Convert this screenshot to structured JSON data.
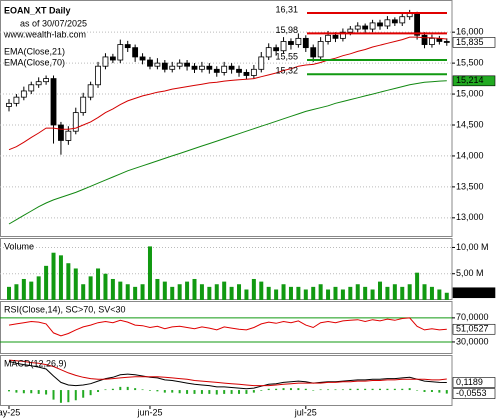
{
  "chart_data": [
    {
      "type": "candlestick",
      "title": "EOAN_XT Daily",
      "subtitle": "as of 30/07/2025",
      "source": "www.wealth-lab.com",
      "open": [
        14.8,
        14.85,
        14.95,
        15.05,
        15.15,
        15.2,
        15.25,
        14.5,
        14.25,
        14.4,
        14.7,
        14.95,
        15.15,
        15.45,
        15.6,
        15.55,
        15.8,
        15.75,
        15.6,
        15.55,
        15.45,
        15.5,
        15.4,
        15.45,
        15.5,
        15.45,
        15.4,
        15.45,
        15.4,
        15.35,
        15.45,
        15.4,
        15.35,
        15.3,
        15.4,
        15.6,
        15.75,
        15.7,
        15.85,
        15.8,
        15.9,
        15.75,
        15.6,
        15.85,
        15.95,
        15.9,
        16.0,
        16.05,
        16.1,
        16.05,
        16.15,
        16.1,
        16.2,
        16.15,
        16.25,
        16.31,
        15.95,
        15.8,
        15.9,
        15.85
      ],
      "high": [
        14.92,
        15.0,
        15.12,
        15.2,
        15.27,
        15.3,
        15.3,
        14.55,
        14.48,
        14.78,
        15.02,
        15.2,
        15.52,
        15.66,
        15.65,
        15.88,
        15.86,
        15.8,
        15.66,
        15.6,
        15.58,
        15.55,
        15.52,
        15.56,
        15.55,
        15.5,
        15.52,
        15.5,
        15.45,
        15.52,
        15.5,
        15.46,
        15.4,
        15.47,
        15.68,
        15.82,
        15.8,
        15.92,
        15.9,
        15.98,
        15.95,
        15.8,
        15.92,
        16.02,
        16.0,
        16.06,
        16.1,
        16.16,
        16.14,
        16.2,
        16.2,
        16.26,
        16.24,
        16.3,
        16.36,
        16.33,
        16.0,
        15.96,
        15.94,
        15.9
      ],
      "low": [
        14.72,
        14.8,
        14.9,
        15.0,
        15.1,
        15.15,
        14.2,
        14.02,
        14.18,
        14.35,
        14.65,
        14.9,
        15.1,
        15.4,
        15.5,
        15.5,
        15.68,
        15.52,
        15.48,
        15.4,
        15.4,
        15.35,
        15.35,
        15.4,
        15.38,
        15.34,
        15.35,
        15.33,
        15.28,
        15.3,
        15.33,
        15.28,
        15.24,
        15.25,
        15.35,
        15.55,
        15.62,
        15.65,
        15.72,
        15.75,
        15.68,
        15.52,
        15.55,
        15.8,
        15.84,
        15.85,
        15.95,
        16.0,
        15.98,
        16.0,
        16.04,
        16.05,
        16.1,
        16.1,
        16.2,
        15.88,
        15.74,
        15.75,
        15.8,
        15.78
      ],
      "close": [
        14.85,
        14.95,
        15.05,
        15.15,
        15.2,
        15.25,
        14.5,
        14.25,
        14.4,
        14.7,
        14.95,
        15.15,
        15.45,
        15.6,
        15.55,
        15.8,
        15.75,
        15.6,
        15.55,
        15.45,
        15.5,
        15.4,
        15.45,
        15.5,
        15.45,
        15.4,
        15.45,
        15.4,
        15.35,
        15.45,
        15.4,
        15.35,
        15.3,
        15.4,
        15.6,
        15.75,
        15.7,
        15.85,
        15.8,
        15.9,
        15.75,
        15.6,
        15.85,
        15.95,
        15.9,
        16.0,
        16.05,
        16.1,
        16.05,
        16.15,
        16.1,
        16.2,
        16.15,
        16.25,
        16.31,
        15.95,
        15.8,
        15.9,
        15.85,
        15.835
      ],
      "series": [
        {
          "name": "EMA(Close,21)",
          "color": "#d40000",
          "values": [
            14.1,
            14.15,
            14.22,
            14.3,
            14.37,
            14.45,
            14.45,
            14.43,
            14.43,
            14.45,
            14.5,
            14.55,
            14.62,
            14.7,
            14.76,
            14.83,
            14.89,
            14.93,
            14.97,
            15.0,
            15.03,
            15.05,
            15.08,
            15.1,
            15.12,
            15.14,
            15.16,
            15.18,
            15.19,
            15.21,
            15.22,
            15.23,
            15.24,
            15.25,
            15.28,
            15.31,
            15.34,
            15.38,
            15.41,
            15.45,
            15.47,
            15.48,
            15.51,
            15.55,
            15.58,
            15.62,
            15.65,
            15.69,
            15.72,
            15.76,
            15.79,
            15.82,
            15.85,
            15.88,
            15.92,
            15.92,
            15.91,
            15.91,
            15.9,
            15.89
          ]
        },
        {
          "name": "EMA(Close,70)",
          "color": "#118811",
          "values": [
            12.9,
            12.97,
            13.04,
            13.11,
            13.18,
            13.24,
            13.29,
            13.33,
            13.37,
            13.41,
            13.46,
            13.51,
            13.56,
            13.61,
            13.66,
            13.71,
            13.76,
            13.8,
            13.84,
            13.88,
            13.92,
            13.96,
            14.0,
            14.04,
            14.08,
            14.12,
            14.16,
            14.2,
            14.24,
            14.28,
            14.32,
            14.36,
            14.4,
            14.44,
            14.48,
            14.52,
            14.56,
            14.6,
            14.64,
            14.68,
            14.72,
            14.75,
            14.78,
            14.81,
            14.85,
            14.88,
            14.91,
            14.94,
            14.97,
            15.0,
            15.03,
            15.06,
            15.09,
            15.12,
            15.15,
            15.17,
            15.19,
            15.2,
            15.21,
            15.214
          ]
        }
      ],
      "levels": [
        {
          "value": 16.31,
          "label": "16,31",
          "color": "#e00000"
        },
        {
          "value": 15.98,
          "label": "15,98",
          "color": "#e00000"
        },
        {
          "value": 15.55,
          "label": "15,55",
          "color": "#119911"
        },
        {
          "value": 15.32,
          "label": "15,32",
          "color": "#119911"
        }
      ],
      "last_labels": [
        {
          "value": 15.835,
          "label": "15,835",
          "color": "#ffffff"
        },
        {
          "value": 15.214,
          "label": "15,214",
          "color": "#22aa22"
        }
      ],
      "ylim": [
        12.69,
        16.52
      ],
      "yticks": [
        {
          "value": 13,
          "label": "13,000"
        },
        {
          "value": 13.5,
          "label": "13,500"
        },
        {
          "value": 14,
          "label": "14,000"
        },
        {
          "value": 14.5,
          "label": "14,500"
        },
        {
          "value": 15,
          "label": "15,000"
        },
        {
          "value": 15.5,
          "label": "15,500"
        },
        {
          "value": 16,
          "label": "16,000"
        }
      ],
      "grid": true
    },
    {
      "type": "bar",
      "title": "Volume",
      "color": "#119911",
      "values": [
        2.5,
        3,
        4,
        3.5,
        4.5,
        6.5,
        9,
        8.5,
        7,
        6,
        3,
        4.5,
        6,
        5,
        4,
        3.5,
        3,
        2.5,
        3,
        10.2,
        4,
        3.5,
        2.5,
        3,
        3.5,
        4,
        3,
        2.5,
        3,
        3.5,
        2.5,
        3,
        2,
        4,
        3.5,
        2.5,
        2,
        3,
        2.5,
        2.5,
        2,
        2.5,
        3,
        2,
        2.5,
        2,
        2.5,
        3,
        2.5,
        2,
        3.5,
        2.5,
        3,
        2.5,
        3,
        5.2,
        3,
        2.5,
        2,
        1.38
      ],
      "last_labels": [
        {
          "value": 1.38,
          "label": "1,38 M",
          "color": "#000000"
        }
      ],
      "ylim": [
        0,
        11.8
      ],
      "yticks": [
        {
          "value": 5,
          "label": "5,00 M"
        },
        {
          "value": 10,
          "label": "10,00 M"
        }
      ],
      "grid": true
    },
    {
      "type": "line",
      "title": "RSI(Close,14), SC>70, SV<30",
      "band_color": "#119911",
      "series": [
        {
          "name": "RSI(Close,14)",
          "color": "#e00000",
          "values": [
            58,
            60,
            62,
            64,
            63,
            60,
            45,
            40,
            44,
            50,
            55,
            58,
            62,
            64,
            62,
            66,
            63,
            58,
            57,
            54,
            56,
            52,
            55,
            56,
            54,
            52,
            55,
            53,
            50,
            55,
            53,
            51,
            50,
            54,
            60,
            63,
            61,
            64,
            62,
            65,
            58,
            54,
            62,
            64,
            62,
            65,
            66,
            67,
            64,
            67,
            65,
            68,
            66,
            69,
            70,
            56,
            50,
            52,
            50,
            51.0527
          ]
        }
      ],
      "last_labels": [
        {
          "value": 51.0527,
          "label": "51,0527",
          "color": "#ffffff"
        }
      ],
      "ylim": [
        10,
        98
      ],
      "yticks": [
        {
          "value": 30,
          "label": "30,0000"
        },
        {
          "value": 70,
          "label": "70,0000"
        }
      ],
      "grid": false
    },
    {
      "type": "macd",
      "title": "MACD(12,26,9)",
      "categories": [
        "ay-25",
        null,
        null,
        null,
        null,
        null,
        null,
        null,
        null,
        null,
        null,
        null,
        null,
        null,
        null,
        null,
        null,
        null,
        null,
        "jun-25",
        null,
        null,
        null,
        null,
        null,
        null,
        null,
        null,
        null,
        null,
        null,
        null,
        null,
        null,
        null,
        null,
        null,
        null,
        null,
        null,
        "jul-25",
        null,
        null,
        null,
        null,
        null,
        null,
        null,
        null,
        null,
        null,
        null,
        null,
        null,
        null,
        null,
        null,
        null,
        null,
        null
      ],
      "series": [
        {
          "name": "MACD",
          "color": "#000000",
          "values": [
            0.45,
            0.42,
            0.4,
            0.38,
            0.36,
            0.33,
            0.22,
            0.12,
            0.08,
            0.07,
            0.08,
            0.1,
            0.14,
            0.18,
            0.2,
            0.24,
            0.25,
            0.24,
            0.22,
            0.2,
            0.19,
            0.16,
            0.15,
            0.13,
            0.11,
            0.09,
            0.08,
            0.07,
            0.05,
            0.05,
            0.04,
            0.03,
            0.02,
            0.03,
            0.06,
            0.09,
            0.1,
            0.12,
            0.13,
            0.14,
            0.13,
            0.11,
            0.12,
            0.13,
            0.13,
            0.14,
            0.15,
            0.16,
            0.16,
            0.17,
            0.17,
            0.18,
            0.18,
            0.19,
            0.2,
            0.17,
            0.14,
            0.13,
            0.12,
            0.1189
          ]
        },
        {
          "name": "Signal",
          "color": "#d40000",
          "values": [
            0.47,
            0.46,
            0.45,
            0.43,
            0.42,
            0.4,
            0.37,
            0.32,
            0.27,
            0.23,
            0.2,
            0.18,
            0.17,
            0.17,
            0.18,
            0.19,
            0.2,
            0.21,
            0.21,
            0.21,
            0.21,
            0.2,
            0.19,
            0.18,
            0.17,
            0.15,
            0.14,
            0.13,
            0.12,
            0.11,
            0.1,
            0.09,
            0.08,
            0.07,
            0.07,
            0.07,
            0.08,
            0.09,
            0.1,
            0.11,
            0.11,
            0.11,
            0.11,
            0.12,
            0.12,
            0.13,
            0.13,
            0.14,
            0.14,
            0.15,
            0.15,
            0.16,
            0.16,
            0.17,
            0.17,
            0.17,
            0.17,
            0.16,
            0.16,
            0.1742
          ]
        }
      ],
      "histogram": {
        "color": "#22aa22",
        "values": [
          -0.02,
          -0.04,
          -0.05,
          -0.05,
          -0.06,
          -0.07,
          -0.15,
          -0.2,
          -0.19,
          -0.16,
          -0.12,
          -0.08,
          -0.03,
          0.01,
          0.02,
          0.05,
          0.05,
          0.03,
          0.01,
          -0.01,
          -0.02,
          -0.04,
          -0.04,
          -0.05,
          -0.06,
          -0.06,
          -0.06,
          -0.06,
          -0.07,
          -0.06,
          -0.06,
          -0.06,
          -0.06,
          -0.04,
          -0.01,
          0.02,
          0.02,
          0.03,
          0.03,
          0.03,
          0.02,
          0,
          0.01,
          0.01,
          0.01,
          0.01,
          0.02,
          0.02,
          0.02,
          0.02,
          0.02,
          0.02,
          0.02,
          0.02,
          0.03,
          0,
          -0.03,
          -0.03,
          -0.04,
          -0.0553
        ]
      },
      "last_labels": [
        {
          "value": 0.1189,
          "label": "0,1189",
          "color": "#ffffff"
        },
        {
          "value": -0.0553,
          "label": "-0,0553",
          "color": "#ffffff"
        }
      ],
      "ylim": [
        -0.25,
        0.55
      ],
      "grid": false
    }
  ]
}
